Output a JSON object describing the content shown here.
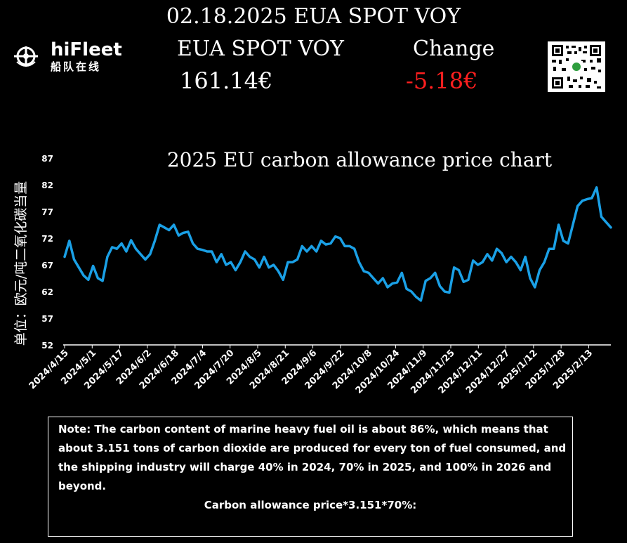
{
  "header": {
    "title": "02.18.2025 EUA SPOT VOY",
    "spot_label": "EUA SPOT VOY",
    "change_label": "Change",
    "spot_price": "161.14€",
    "change_value": "-5.18€",
    "change_color": "#ff1f1f"
  },
  "logo": {
    "name": "hiFleet",
    "subtitle": "船队在线",
    "icon": "ship-wheel-icon"
  },
  "qr": {
    "icon": "qr-code-icon"
  },
  "chart_data": {
    "type": "line",
    "title": "2025 EU carbon allowance price chart",
    "ylabel": "单位：欧元/吨二氧化碳当量",
    "ylim": [
      52,
      87
    ],
    "yticks": [
      87,
      82,
      77,
      72,
      67,
      62,
      57,
      52
    ],
    "xlabels": [
      "2024/4/15",
      "2024/5/1",
      "2024/5/17",
      "2024/6/2",
      "2024/6/18",
      "2024/7/4",
      "2024/7/20",
      "2024/8/5",
      "2024/8/21",
      "2024/9/6",
      "2024/9/22",
      "2024/10/8",
      "2024/10/24",
      "2024/11/9",
      "2024/11/25",
      "2024/12/11",
      "2024/12/27",
      "2025/1/12",
      "2025/1/28",
      "2025/2/13"
    ],
    "grid": false,
    "line_color": "#1aa0e6",
    "series": [
      {
        "name": "",
        "values": [
          68.5,
          71.5,
          68.0,
          66.5,
          65.0,
          64.2,
          66.8,
          64.5,
          64.0,
          68.5,
          70.3,
          70.0,
          71.0,
          69.5,
          71.6,
          70.0,
          69.0,
          68.0,
          69.0,
          71.5,
          74.5,
          74.0,
          73.5,
          74.5,
          72.5,
          73.0,
          73.2,
          71.0,
          70.0,
          69.8,
          69.5,
          69.5,
          67.5,
          69.0,
          67.0,
          67.5,
          66.0,
          67.5,
          69.5,
          68.5,
          68.0,
          66.5,
          68.5,
          66.5,
          67.0,
          65.8,
          64.2,
          67.5,
          67.5,
          68.0,
          70.5,
          69.5,
          70.5,
          69.5,
          71.5,
          70.8,
          71.0,
          72.3,
          72.0,
          70.5,
          70.5,
          70.0,
          67.5,
          65.8,
          65.5,
          64.5,
          63.5,
          64.5,
          62.8,
          63.5,
          63.7,
          65.5,
          62.5,
          62.0,
          61.0,
          60.3,
          64.0,
          64.5,
          65.5,
          63.0,
          62.0,
          61.8,
          66.5,
          66.0,
          63.8,
          64.2,
          67.8,
          67.0,
          67.5,
          69.0,
          67.8,
          70.0,
          69.2,
          67.5,
          68.5,
          67.5,
          66.0,
          68.5,
          64.5,
          62.8,
          66.0,
          67.5,
          70.0,
          70.0,
          74.5,
          71.5,
          71.0,
          74.5,
          78.0,
          79.0,
          79.3,
          79.5,
          81.5,
          76.0,
          75.0,
          74.0
        ]
      }
    ]
  },
  "note": {
    "text": "Note: The carbon content of marine heavy fuel oil is about 86%, which means that about 3.151 tons of carbon dioxide are produced for every ton of fuel consumed, and the shipping industry will charge 40% in 2024, 70% in 2025, and 100% in 2026 and beyond.",
    "formula": "Carbon allowance price*3.151*70%:"
  }
}
